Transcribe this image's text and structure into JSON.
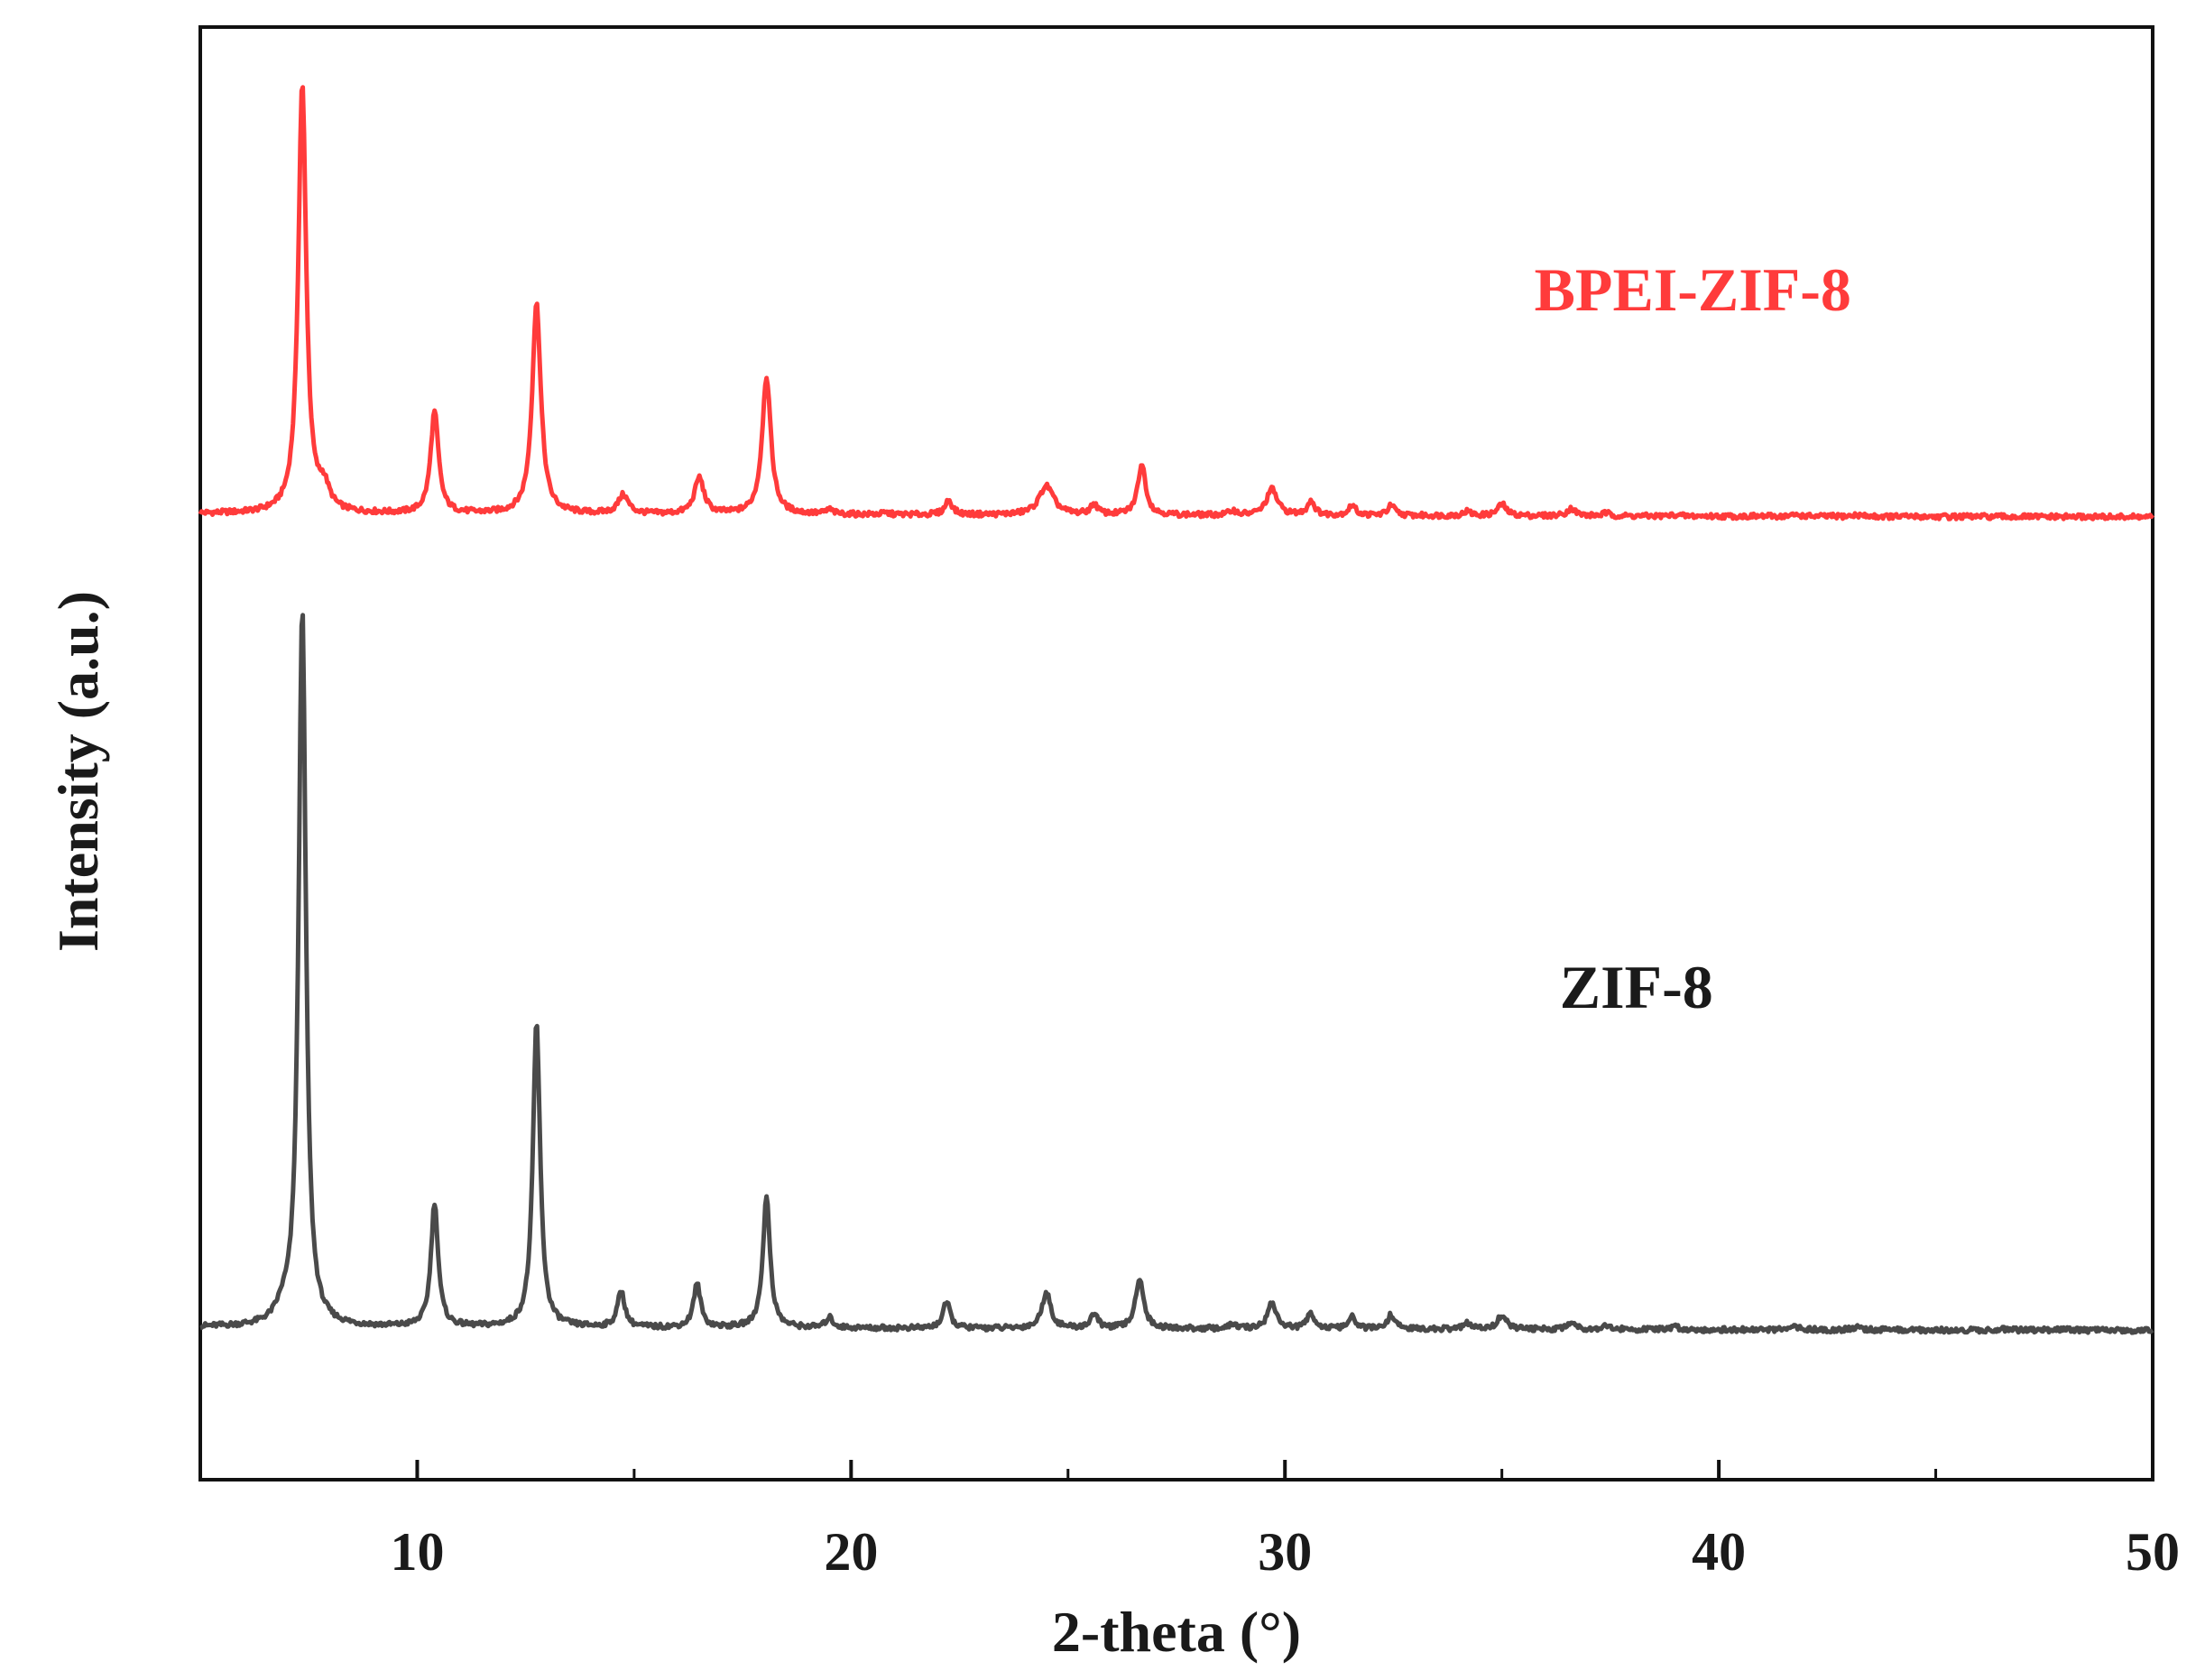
{
  "chart_data": {
    "type": "line",
    "title": "",
    "xlabel": "2-theta (°)",
    "ylabel": "Intensity (a.u.)",
    "xlim": [
      5,
      50
    ],
    "ylim": [
      0,
      100
    ],
    "yticks_shown": false,
    "grid": false,
    "xticks": [
      {
        "value": 10,
        "label": "10"
      },
      {
        "value": 20,
        "label": "20"
      },
      {
        "value": 30,
        "label": "30"
      },
      {
        "value": 40,
        "label": "40"
      },
      {
        "value": 50,
        "label": "50"
      }
    ],
    "series": [
      {
        "name": "BPEI-ZIF-8",
        "color": "#ff3b3b",
        "baseline": 66.5,
        "peaks": [
          {
            "x": 7.35,
            "y": 96.0,
            "w": 0.11
          },
          {
            "x": 7.85,
            "y": 68.0,
            "w": 0.15
          },
          {
            "x": 10.4,
            "y": 73.5,
            "w": 0.11
          },
          {
            "x": 12.75,
            "y": 81.0,
            "w": 0.12
          },
          {
            "x": 14.75,
            "y": 67.8,
            "w": 0.14
          },
          {
            "x": 16.5,
            "y": 69.0,
            "w": 0.13
          },
          {
            "x": 18.05,
            "y": 76.0,
            "w": 0.12
          },
          {
            "x": 19.5,
            "y": 66.8,
            "w": 0.1
          },
          {
            "x": 20.8,
            "y": 66.6,
            "w": 0.1
          },
          {
            "x": 22.25,
            "y": 67.5,
            "w": 0.1
          },
          {
            "x": 24.5,
            "y": 68.5,
            "w": 0.2
          },
          {
            "x": 25.6,
            "y": 67.2,
            "w": 0.1
          },
          {
            "x": 26.7,
            "y": 70.0,
            "w": 0.11
          },
          {
            "x": 28.8,
            "y": 66.8,
            "w": 0.1
          },
          {
            "x": 29.7,
            "y": 68.3,
            "w": 0.15
          },
          {
            "x": 30.6,
            "y": 67.5,
            "w": 0.1
          },
          {
            "x": 31.55,
            "y": 67.2,
            "w": 0.1
          },
          {
            "x": 32.45,
            "y": 67.2,
            "w": 0.1
          },
          {
            "x": 34.2,
            "y": 66.8,
            "w": 0.1
          },
          {
            "x": 35.0,
            "y": 67.3,
            "w": 0.12
          },
          {
            "x": 36.6,
            "y": 67.0,
            "w": 0.12
          },
          {
            "x": 37.4,
            "y": 66.7,
            "w": 0.1
          },
          {
            "x": 39.0,
            "y": 66.6,
            "w": 0.1
          },
          {
            "x": 41.8,
            "y": 66.6,
            "w": 0.12
          },
          {
            "x": 43.2,
            "y": 66.6,
            "w": 0.12
          },
          {
            "x": 46.5,
            "y": 66.5,
            "w": 0.12
          },
          {
            "x": 48.0,
            "y": 66.5,
            "w": 0.12
          }
        ]
      },
      {
        "name": "ZIF-8",
        "color": "#4a4a4a",
        "baseline": 10.5,
        "peaks": [
          {
            "x": 6.9,
            "y": 11.3,
            "w": 0.18
          },
          {
            "x": 7.35,
            "y": 60.0,
            "w": 0.1
          },
          {
            "x": 10.4,
            "y": 19.0,
            "w": 0.1
          },
          {
            "x": 12.75,
            "y": 31.5,
            "w": 0.1
          },
          {
            "x": 14.7,
            "y": 13.0,
            "w": 0.1
          },
          {
            "x": 16.45,
            "y": 13.5,
            "w": 0.1
          },
          {
            "x": 18.05,
            "y": 19.5,
            "w": 0.1
          },
          {
            "x": 19.5,
            "y": 11.2,
            "w": 0.1
          },
          {
            "x": 22.2,
            "y": 12.3,
            "w": 0.1
          },
          {
            "x": 24.5,
            "y": 13.0,
            "w": 0.12
          },
          {
            "x": 25.6,
            "y": 11.5,
            "w": 0.1
          },
          {
            "x": 26.65,
            "y": 14.0,
            "w": 0.11
          },
          {
            "x": 28.8,
            "y": 10.8,
            "w": 0.1
          },
          {
            "x": 29.7,
            "y": 12.3,
            "w": 0.12
          },
          {
            "x": 30.6,
            "y": 11.6,
            "w": 0.1
          },
          {
            "x": 31.55,
            "y": 11.3,
            "w": 0.1
          },
          {
            "x": 32.45,
            "y": 11.5,
            "w": 0.1
          },
          {
            "x": 34.2,
            "y": 10.9,
            "w": 0.1
          },
          {
            "x": 35.0,
            "y": 11.5,
            "w": 0.12
          },
          {
            "x": 36.6,
            "y": 11.0,
            "w": 0.12
          },
          {
            "x": 37.4,
            "y": 10.8,
            "w": 0.1
          },
          {
            "x": 39.0,
            "y": 10.7,
            "w": 0.1
          },
          {
            "x": 41.8,
            "y": 10.7,
            "w": 0.12
          },
          {
            "x": 43.2,
            "y": 10.7,
            "w": 0.12
          },
          {
            "x": 46.5,
            "y": 10.6,
            "w": 0.12
          },
          {
            "x": 48.0,
            "y": 10.6,
            "w": 0.12
          }
        ]
      }
    ],
    "annotations": [
      {
        "text": "BPEI-ZIF-8",
        "color": "#ff3b3b",
        "x": 39.4,
        "y": 80.5
      },
      {
        "text": "ZIF-8",
        "color": "#1a1a1a",
        "x": 38.1,
        "y": 32.5
      }
    ]
  }
}
